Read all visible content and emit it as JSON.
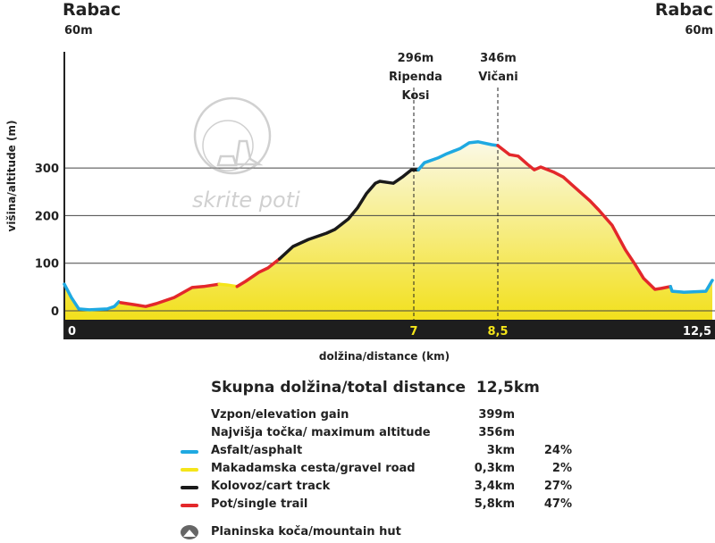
{
  "start": {
    "name": "Rabac",
    "alt": "60m"
  },
  "end": {
    "name": "Rabac",
    "alt": "60m"
  },
  "markers": [
    {
      "alt": "296m",
      "name": "Ripenda Kosi",
      "km": 7
    },
    {
      "alt": "346m",
      "name": "Vičani",
      "km": 8.5
    }
  ],
  "watermark": "skrite poti",
  "summary": {
    "title": "Skupna dolžina/total distance",
    "value": "12,5km"
  },
  "stats": [
    {
      "label": "Vzpon/elevation gain",
      "value": "399m",
      "pct": ""
    },
    {
      "label": "Najvišja točka/ maximum altitude",
      "value": "356m",
      "pct": ""
    },
    {
      "label": "Asfalt/asphalt",
      "value": "3km",
      "pct": "24%",
      "color": "#1fa9e1"
    },
    {
      "label": "Makadamska cesta/gravel road",
      "value": "0,3km",
      "pct": "2%",
      "color": "#f5e51a"
    },
    {
      "label": "Kolovoz/cart track",
      "value": "3,4km",
      "pct": "27%",
      "color": "#1a1a1a"
    },
    {
      "label": "Pot/single trail",
      "value": "5,8km",
      "pct": "47%",
      "color": "#e3282b"
    }
  ],
  "hut": {
    "label": "Planinska koča/mountain hut"
  },
  "chart_data": {
    "type": "area",
    "xlabel": "dolžina/distance (km)",
    "ylabel": "višina/altitude (m)",
    "yticks": [
      0,
      100,
      200,
      300
    ],
    "ylim": [
      -20,
      500
    ],
    "xlim": [
      0,
      12.5
    ],
    "xticks": [
      {
        "v": 0,
        "label": "0",
        "color": "#ffffff"
      },
      {
        "v": 7,
        "label": "7",
        "color": "#f5e51a"
      },
      {
        "v": 8.5,
        "label": "8,5",
        "color": "#f5e51a"
      },
      {
        "v": 12.5,
        "label": "12,5",
        "color": "#ffffff"
      }
    ],
    "segments": [
      {
        "surface": "asphalt",
        "color": "#1fa9e1",
        "points": [
          [
            0,
            56
          ],
          [
            0.14,
            28
          ],
          [
            0.29,
            4
          ],
          [
            0.5,
            2
          ],
          [
            0.86,
            4
          ],
          [
            1.0,
            9
          ],
          [
            1.09,
            19
          ]
        ]
      },
      {
        "surface": "single trail",
        "color": "#e3282b",
        "points": [
          [
            1.13,
            17
          ],
          [
            1.4,
            13
          ],
          [
            1.63,
            9
          ],
          [
            1.84,
            15
          ],
          [
            2.2,
            28
          ],
          [
            2.56,
            49
          ],
          [
            2.79,
            51
          ],
          [
            3.1,
            56
          ]
        ]
      },
      {
        "surface": "gravel road",
        "color": "#f5e51a",
        "points": [
          [
            3.1,
            56
          ],
          [
            3.28,
            54
          ],
          [
            3.46,
            51
          ]
        ]
      },
      {
        "surface": "single trail",
        "color": "#e3282b",
        "points": [
          [
            3.46,
            51
          ],
          [
            3.63,
            62
          ],
          [
            3.9,
            81
          ],
          [
            4.08,
            90
          ],
          [
            4.31,
            109
          ]
        ]
      },
      {
        "surface": "cart track",
        "color": "#1a1a1a",
        "points": [
          [
            4.31,
            109
          ],
          [
            4.58,
            135
          ],
          [
            4.89,
            150
          ],
          [
            5.25,
            163
          ],
          [
            5.42,
            171
          ],
          [
            5.69,
            193
          ],
          [
            5.87,
            216
          ],
          [
            6.05,
            246
          ],
          [
            6.23,
            268
          ],
          [
            6.32,
            272
          ],
          [
            6.59,
            268
          ],
          [
            6.77,
            281
          ],
          [
            6.95,
            296
          ],
          [
            7.08,
            296
          ]
        ]
      },
      {
        "surface": "asphalt",
        "color": "#1fa9e1",
        "points": [
          [
            7.08,
            296
          ],
          [
            7.19,
            311
          ],
          [
            7.43,
            321
          ],
          [
            7.59,
            330
          ],
          [
            7.83,
            341
          ],
          [
            7.99,
            353
          ],
          [
            8.15,
            355
          ],
          [
            8.39,
            349
          ],
          [
            8.5,
            347
          ]
        ]
      },
      {
        "surface": "single trail",
        "color": "#e3282b",
        "points": [
          [
            8.5,
            347
          ],
          [
            8.72,
            328
          ],
          [
            8.88,
            325
          ],
          [
            9.05,
            308
          ],
          [
            9.18,
            296
          ],
          [
            9.3,
            302
          ],
          [
            9.55,
            291
          ],
          [
            9.72,
            281
          ],
          [
            9.88,
            265
          ],
          [
            10.22,
            231
          ],
          [
            10.38,
            212
          ],
          [
            10.63,
            180
          ],
          [
            10.88,
            128
          ],
          [
            11.05,
            99
          ],
          [
            11.22,
            68
          ],
          [
            11.43,
            45
          ],
          [
            11.55,
            47
          ],
          [
            11.72,
            51
          ]
        ]
      },
      {
        "surface": "asphalt",
        "color": "#1fa9e1",
        "points": [
          [
            11.72,
            51
          ],
          [
            11.75,
            41
          ],
          [
            11.97,
            39
          ],
          [
            12.38,
            41
          ],
          [
            12.5,
            64
          ]
        ]
      }
    ]
  }
}
